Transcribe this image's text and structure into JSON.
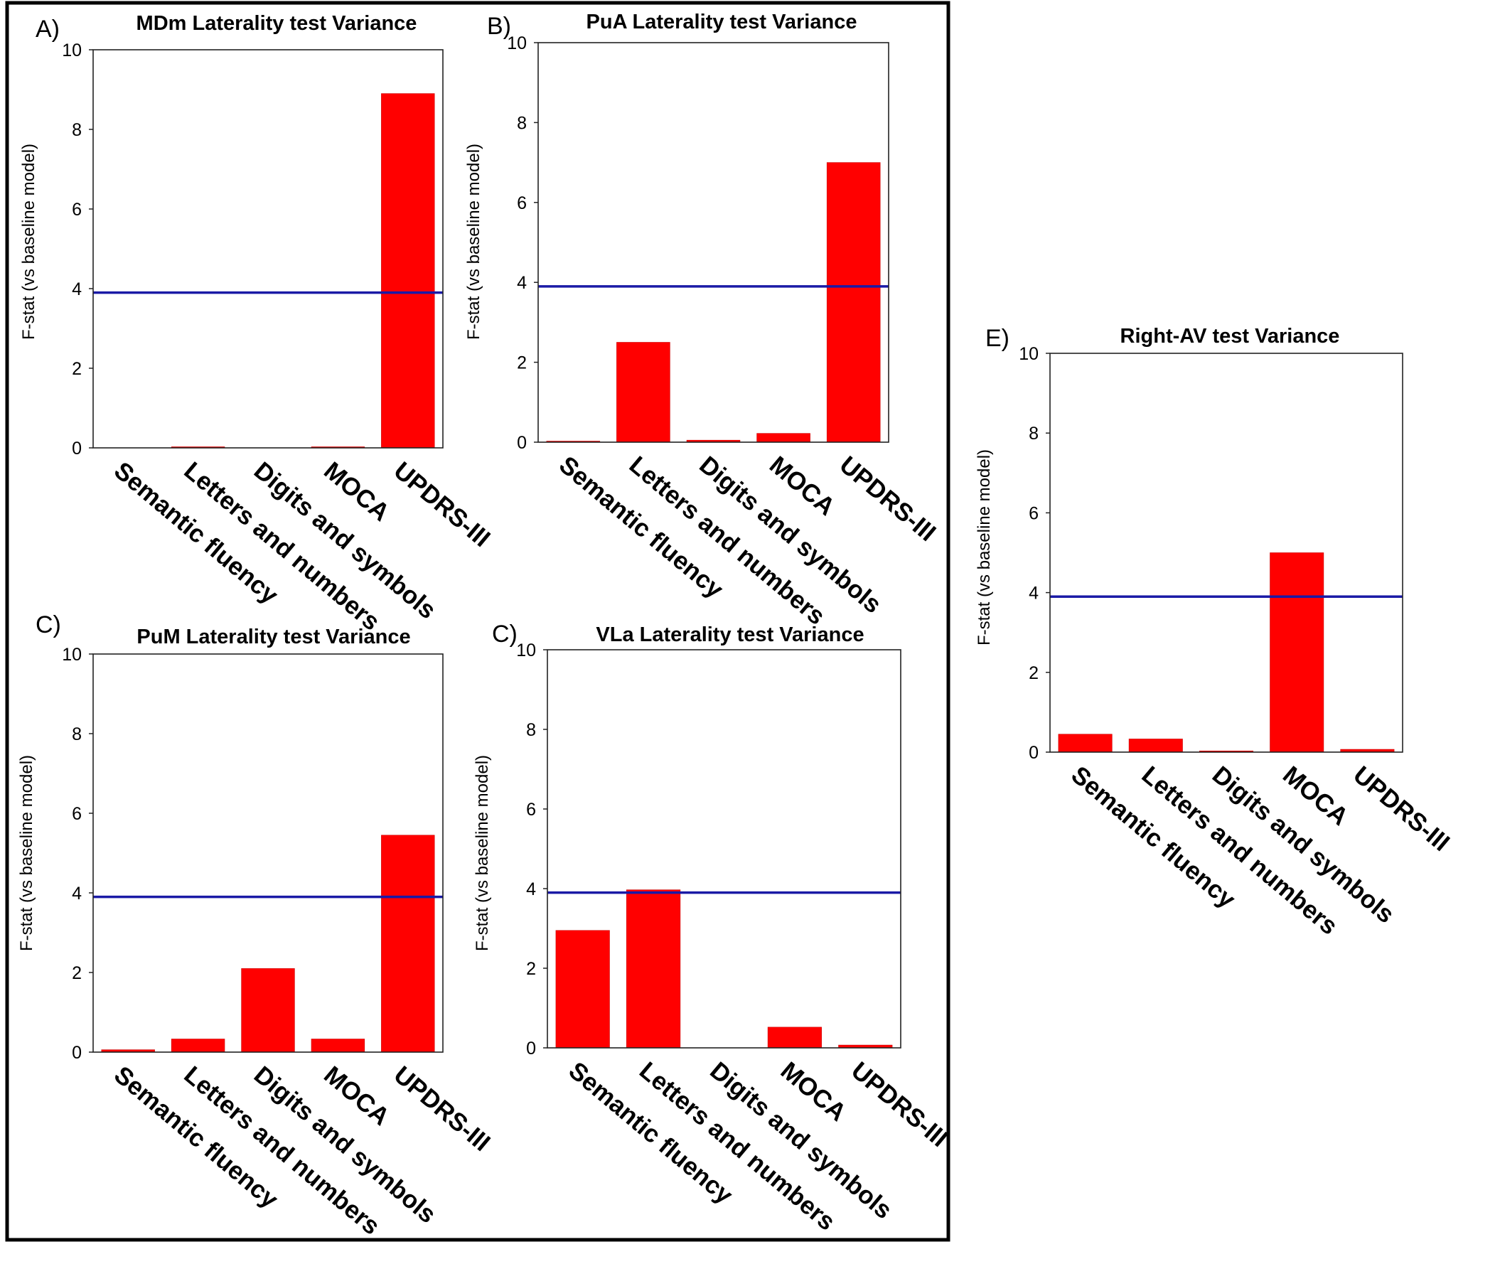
{
  "colors": {
    "bar": "#ff0000",
    "threshold": "#1a1aa6",
    "frame": "#000000"
  },
  "chart_data": [
    {
      "id": "A",
      "panel_label": "A)",
      "type": "bar",
      "title": "MDm Laterality test Variance",
      "xlabel": "",
      "ylabel": "F-stat (vs baseline model)",
      "ylim": [
        0,
        10
      ],
      "yticks": [
        "0",
        "2",
        "4",
        "6",
        "8",
        "10"
      ],
      "categories": [
        "Semantic fluency",
        "Letters and numbers",
        "Digits and symbols",
        "MOCA",
        "UPDRS-III"
      ],
      "values": [
        0.0,
        0.02,
        0.0,
        0.02,
        8.9
      ],
      "threshold": 3.9
    },
    {
      "id": "B",
      "panel_label": "B)",
      "type": "bar",
      "title": "PuA Laterality test Variance",
      "xlabel": "",
      "ylabel": "F-stat (vs baseline model)",
      "ylim": [
        0,
        10
      ],
      "yticks": [
        "0",
        "2",
        "4",
        "6",
        "8",
        "10"
      ],
      "categories": [
        "Semantic fluency",
        "Letters and numbers",
        "Digits and symbols",
        "MOCA",
        "UPDRS-III"
      ],
      "values": [
        0.02,
        2.5,
        0.05,
        0.22,
        7.0
      ],
      "threshold": 3.9
    },
    {
      "id": "C1",
      "panel_label": "C)",
      "type": "bar",
      "title": "PuM Laterality test Variance",
      "xlabel": "",
      "ylabel": "F-stat (vs baseline model)",
      "ylim": [
        0,
        10
      ],
      "yticks": [
        "0",
        "2",
        "4",
        "6",
        "8",
        "10"
      ],
      "categories": [
        "Semantic fluency",
        "Letters and numbers",
        "Digits and symbols",
        "MOCA",
        "UPDRS-III"
      ],
      "values": [
        0.06,
        0.33,
        2.1,
        0.33,
        5.45
      ],
      "threshold": 3.9
    },
    {
      "id": "C2",
      "panel_label": "C)",
      "type": "bar",
      "title": "VLa Laterality test Variance",
      "xlabel": "",
      "ylabel": "F-stat (vs baseline model)",
      "ylim": [
        0,
        10
      ],
      "yticks": [
        "0",
        "2",
        "4",
        "6",
        "8",
        "10"
      ],
      "categories": [
        "Semantic fluency",
        "Letters and numbers",
        "Digits and symbols",
        "MOCA",
        "UPDRS-III"
      ],
      "values": [
        2.95,
        3.97,
        0.0,
        0.52,
        0.07
      ],
      "threshold": 3.9
    },
    {
      "id": "E",
      "panel_label": "E)",
      "type": "bar",
      "title": "Right-AV test Variance",
      "xlabel": "",
      "ylabel": "F-stat (vs baseline model)",
      "ylim": [
        0,
        10
      ],
      "yticks": [
        "0",
        "2",
        "4",
        "6",
        "8",
        "10"
      ],
      "categories": [
        "Semantic fluency",
        "Letters and numbers",
        "Digits and symbols",
        "MOCA",
        "UPDRS-III"
      ],
      "values": [
        0.45,
        0.33,
        0.03,
        5.0,
        0.07
      ],
      "threshold": 3.9
    }
  ]
}
